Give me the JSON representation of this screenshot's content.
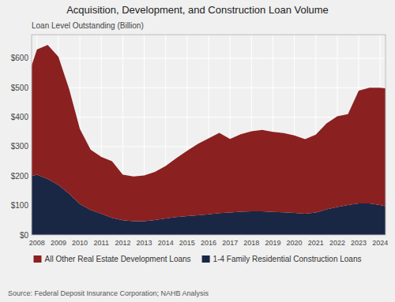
{
  "chart_data": {
    "type": "area",
    "stacked": true,
    "title": "Acquisition, Development, and Construction Loan Volume",
    "y_label": "Loan Level Outstanding (Billion)",
    "source": "Source: Federal Deposit Insurance Corporation; NAHB Analysis",
    "x": [
      2007.75,
      2008.0,
      2008.5,
      2009.0,
      2009.5,
      2010.0,
      2010.5,
      2011.0,
      2011.5,
      2012.0,
      2012.5,
      2013.0,
      2013.5,
      2014.0,
      2014.5,
      2015.0,
      2015.5,
      2016.0,
      2016.5,
      2017.0,
      2017.5,
      2018.0,
      2018.5,
      2019.0,
      2019.5,
      2020.0,
      2020.5,
      2021.0,
      2021.5,
      2022.0,
      2022.5,
      2023.0,
      2023.5,
      2024.0,
      2024.25
    ],
    "series": [
      {
        "name": "1-4 Family Residential Construction Loans",
        "color": "#1a2744",
        "values": [
          200,
          205,
          190,
          170,
          140,
          105,
          85,
          72,
          58,
          50,
          47,
          47,
          51,
          56,
          61,
          64,
          67,
          70,
          74,
          76,
          79,
          80,
          80,
          78,
          77,
          75,
          72,
          76,
          87,
          95,
          102,
          107,
          107,
          102,
          98
        ]
      },
      {
        "name": "All Other Real Estate Development Loans",
        "color": "#8b2020",
        "values": [
          375,
          425,
          455,
          435,
          355,
          255,
          205,
          193,
          192,
          155,
          152,
          155,
          163,
          178,
          200,
          222,
          242,
          258,
          273,
          250,
          263,
          272,
          277,
          272,
          269,
          263,
          253,
          265,
          292,
          308,
          308,
          383,
          393,
          398,
          400
        ]
      }
    ],
    "xlim": [
      2007.75,
      2024.25
    ],
    "xticks": [
      2008,
      2009,
      2010,
      2011,
      2012,
      2013,
      2014,
      2015,
      2016,
      2017,
      2018,
      2019,
      2020,
      2021,
      2022,
      2023,
      2024
    ],
    "ylim": [
      0,
      680
    ],
    "yticks": [
      {
        "value": 0,
        "label": "$0"
      },
      {
        "value": 100,
        "label": "$100"
      },
      {
        "value": 200,
        "label": "$200"
      },
      {
        "value": 300,
        "label": "$300"
      },
      {
        "value": 400,
        "label": "$400"
      },
      {
        "value": 500,
        "label": "$500"
      },
      {
        "value": 600,
        "label": "$600"
      }
    ],
    "grid": true,
    "legend": "bottom"
  }
}
